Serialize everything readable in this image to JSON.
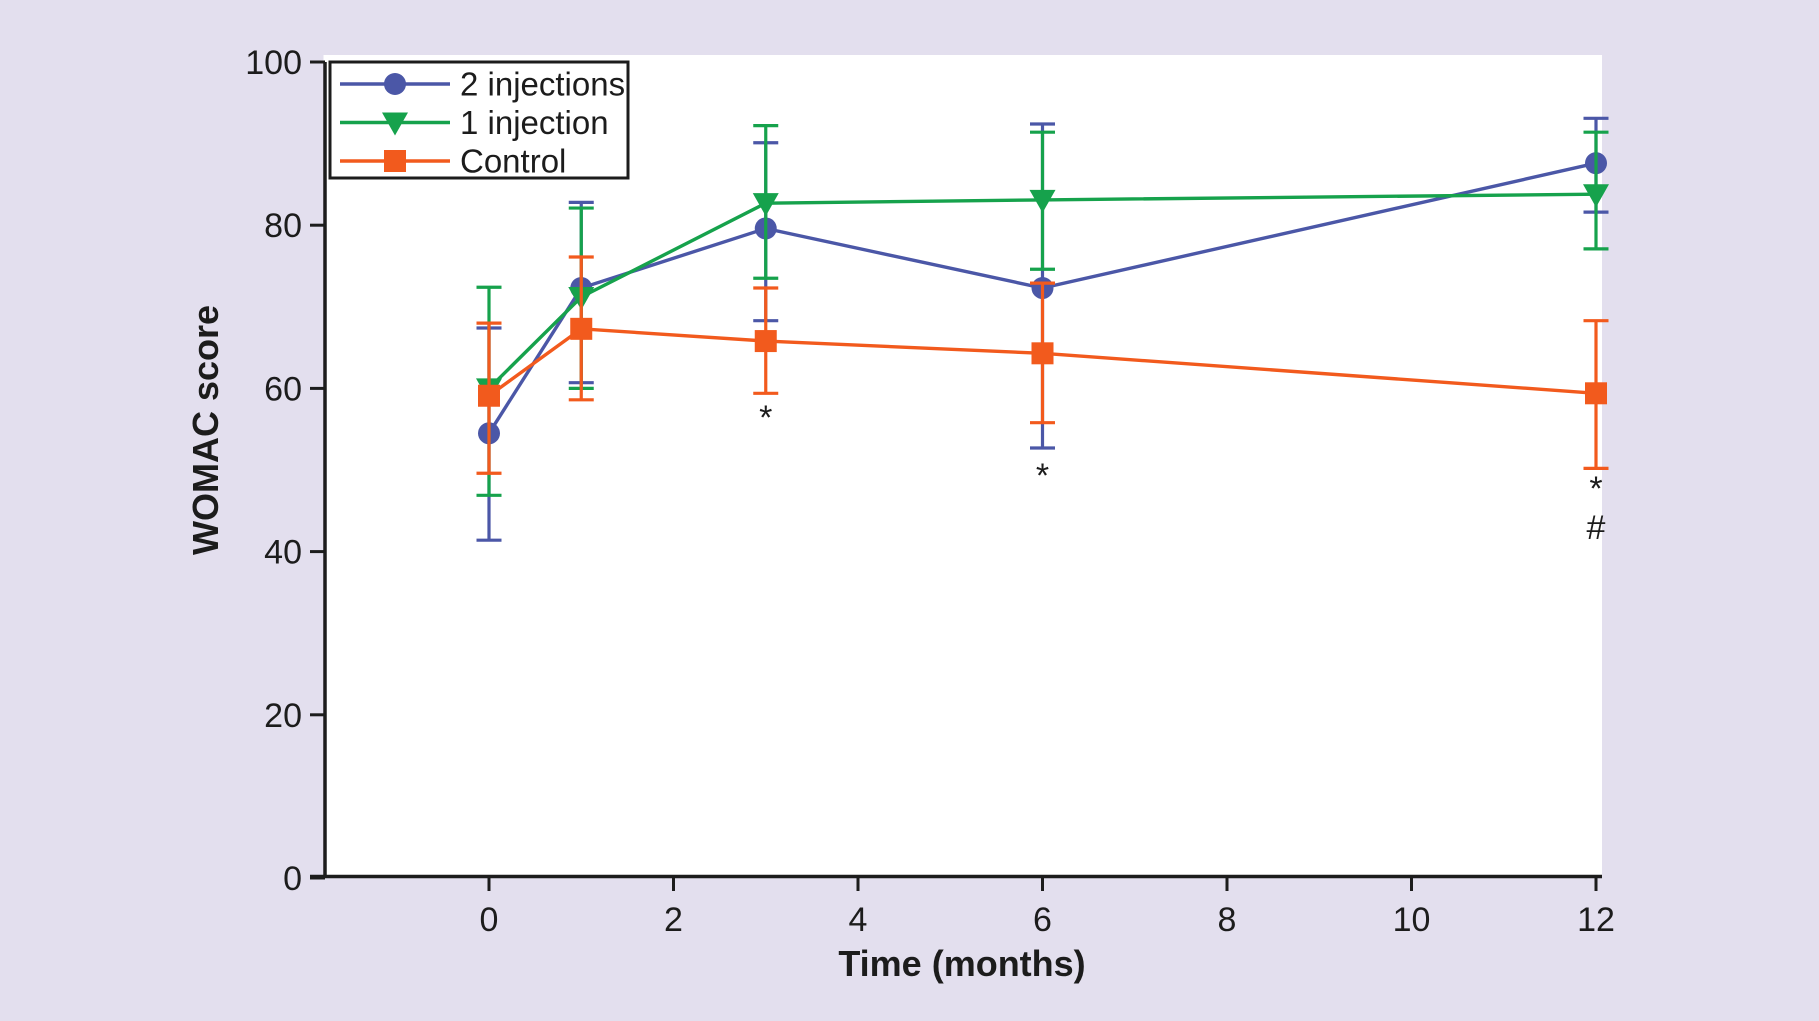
{
  "chart_data": {
    "type": "line",
    "title": "",
    "xlabel": "Time (months)",
    "ylabel": "WOMAC score",
    "x": [
      0,
      1,
      3,
      6,
      12
    ],
    "x_ticks": [
      0,
      2,
      4,
      6,
      8,
      10,
      12
    ],
    "y_ticks": [
      0,
      20,
      40,
      60,
      80,
      100
    ],
    "xlim": [
      -1.8,
      12.05
    ],
    "ylim": [
      0,
      100
    ],
    "grid": false,
    "legend_position": "top-left",
    "series": [
      {
        "name": "2 injections",
        "marker": "circle",
        "color": "#4b57a7",
        "values": [
          54.5,
          72.3,
          79.6,
          72.3,
          87.6
        ],
        "err_high": [
          67.4,
          82.8,
          90.1,
          92.4,
          93.1
        ],
        "err_low": [
          41.4,
          60.7,
          68.3,
          52.7,
          81.6
        ]
      },
      {
        "name": "1 injection",
        "marker": "triangle-down",
        "color": "#16a24c",
        "values": [
          60.0,
          71.2,
          82.7,
          83.1,
          83.8
        ],
        "err_high": [
          72.4,
          82.1,
          92.2,
          91.4,
          91.4
        ],
        "err_low": [
          46.9,
          60.0,
          73.5,
          74.6,
          77.1
        ]
      },
      {
        "name": "Control",
        "marker": "square",
        "color": "#f25a1d",
        "values": [
          59.1,
          67.3,
          65.8,
          64.3,
          59.4
        ],
        "err_high": [
          68.0,
          76.1,
          72.3,
          72.9,
          68.3
        ],
        "err_low": [
          49.6,
          58.6,
          59.4,
          55.8,
          50.2
        ]
      }
    ],
    "annotations": [
      {
        "x": 3,
        "y": 56.5,
        "text": "*"
      },
      {
        "x": 6,
        "y": 49.4,
        "text": "*"
      },
      {
        "x": 12,
        "y": 47.8,
        "text": "*"
      },
      {
        "x": 12,
        "y": 43.0,
        "text": "#"
      }
    ]
  },
  "colors": {
    "background": "#e3dfee",
    "plot_background": "#ffffff",
    "axis": "#1c1c1c",
    "text": "#1c1c1c",
    "legend_border": "#1c1c1c",
    "legend_fill": "#ffffff"
  }
}
